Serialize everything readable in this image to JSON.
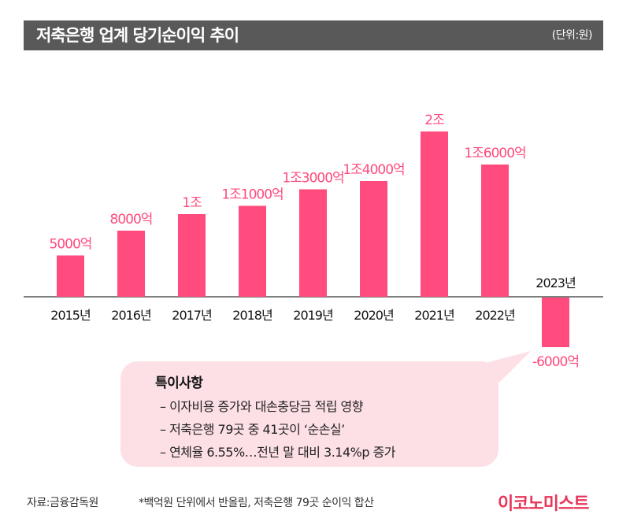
{
  "header": {
    "title": "저축은행 업계 당기순이익 추이",
    "unit": "(단위:원)"
  },
  "chart_data": {
    "type": "bar",
    "categories": [
      "2015년",
      "2016년",
      "2017년",
      "2018년",
      "2019년",
      "2020년",
      "2021년",
      "2022년",
      "2023년"
    ],
    "values_eok": [
      5000,
      8000,
      10000,
      11000,
      13000,
      14000,
      20000,
      16000,
      -6000
    ],
    "data_labels": [
      "5000억",
      "8000억",
      "1조",
      "1조1000억",
      "1조3000억",
      "1조4000억",
      "2조",
      "1조6000억",
      "-6000억"
    ],
    "bar_color": "#ff4b7d",
    "axis_color": "#555555"
  },
  "notes": {
    "heading": "특이사항",
    "items": [
      "– 이자비용 증가와 대손충당금 적립 영향",
      "– 저축은행 79곳 중 41곳이 ‘순손실’",
      "– 연체율 6.55%…전년 말 대비 3.14%p 증가"
    ],
    "box_color": "#fde0e6"
  },
  "footer": {
    "source": "자료:금융감독원",
    "footnote": "*백억원 단위에서 반올림, 저축은행 79곳 순이익 합산",
    "logo": "이코노미스트",
    "logo_color": "#e8355a"
  }
}
